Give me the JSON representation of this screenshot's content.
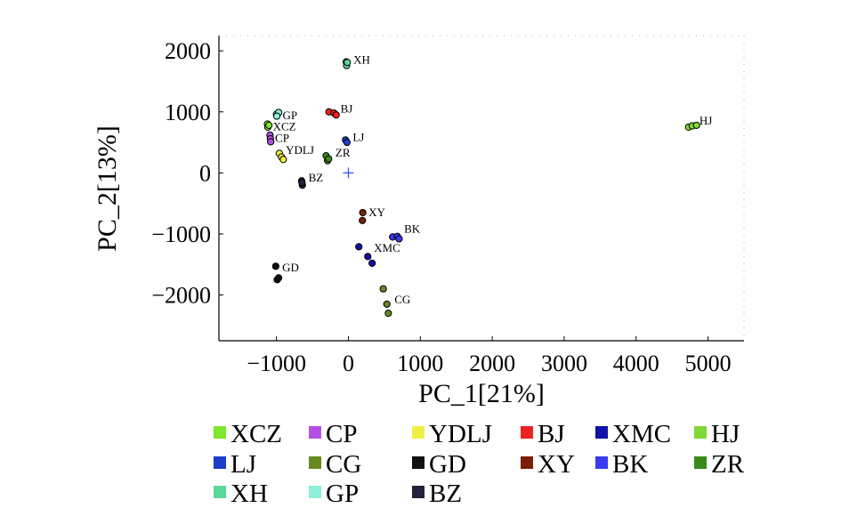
{
  "chart_data": {
    "type": "scatter",
    "xlabel": "PC_1[21%]",
    "ylabel": "PC_2[13%]",
    "xlim": [
      -1800,
      5500
    ],
    "ylim": [
      -2750,
      2250
    ],
    "xticks": [
      -1000,
      0,
      1000,
      2000,
      3000,
      4000,
      5000
    ],
    "yticks": [
      2000,
      1000,
      0,
      -1000,
      -2000
    ],
    "xtick_labels": [
      "−1000",
      "0",
      "1000",
      "2000",
      "3000",
      "4000",
      "5000"
    ],
    "ytick_labels": [
      "2000",
      "1000",
      "0",
      "−1000",
      "−2000"
    ],
    "grid": false,
    "legend_position": "bottom",
    "origin_marker": {
      "x": 0,
      "y": 0,
      "symbol": "+",
      "color": "#3355ff"
    },
    "series": [
      {
        "name": "XCZ",
        "color": "#7de82c",
        "points": [
          [
            -1125,
            800
          ],
          [
            -1120,
            750
          ],
          [
            -1105,
            780
          ]
        ],
        "label_at": [
          -1050,
          700
        ]
      },
      {
        "name": "CP",
        "color": "#b44fe8",
        "points": [
          [
            -1090,
            620
          ],
          [
            -1085,
            560
          ],
          [
            -1080,
            510
          ]
        ],
        "label_at": [
          -1020,
          510
        ]
      },
      {
        "name": "YDLJ",
        "color": "#eeee44",
        "points": [
          [
            -960,
            320
          ],
          [
            -930,
            260
          ],
          [
            -905,
            220
          ]
        ],
        "label_at": [
          -870,
          310
        ]
      },
      {
        "name": "BJ",
        "color": "#ee2222",
        "points": [
          [
            -270,
            1000
          ],
          [
            -200,
            980
          ],
          [
            -170,
            950
          ]
        ],
        "label_at": [
          -110,
          990
        ]
      },
      {
        "name": "XMC",
        "color": "#1010aa",
        "points": [
          [
            145,
            -1210
          ],
          [
            270,
            -1370
          ],
          [
            330,
            -1480
          ]
        ],
        "label_at": [
          355,
          -1290
        ]
      },
      {
        "name": "HJ",
        "color": "#80d834",
        "points": [
          [
            4730,
            750
          ],
          [
            4780,
            770
          ],
          [
            4840,
            780
          ]
        ],
        "label_at": [
          4880,
          790
        ]
      },
      {
        "name": "LJ",
        "color": "#1a3fcc",
        "points": [
          [
            -40,
            540
          ],
          [
            -20,
            500
          ]
        ],
        "label_at": [
          60,
          520
        ]
      },
      {
        "name": "CG",
        "color": "#66881e",
        "points": [
          [
            485,
            -1900
          ],
          [
            535,
            -2150
          ],
          [
            555,
            -2300
          ]
        ],
        "label_at": [
          640,
          -2140
        ]
      },
      {
        "name": "GD",
        "color": "#111111",
        "points": [
          [
            -1010,
            -1530
          ],
          [
            -990,
            -1750
          ],
          [
            -970,
            -1720
          ]
        ],
        "label_at": [
          -920,
          -1610
        ]
      },
      {
        "name": "XY",
        "color": "#7a1e08",
        "points": [
          [
            200,
            -650
          ],
          [
            195,
            -780
          ]
        ],
        "label_at": [
          280,
          -710
        ]
      },
      {
        "name": "BK",
        "color": "#3a3aee",
        "points": [
          [
            615,
            -1050
          ],
          [
            680,
            -1040
          ],
          [
            705,
            -1080
          ]
        ],
        "label_at": [
          775,
          -980
        ]
      },
      {
        "name": "ZR",
        "color": "#3a8a1a",
        "points": [
          [
            -310,
            280
          ],
          [
            -290,
            200
          ],
          [
            -275,
            230
          ]
        ],
        "label_at": [
          -180,
          270
        ]
      },
      {
        "name": "XH",
        "color": "#5ad89a",
        "points": [
          [
            -30,
            1820
          ],
          [
            -25,
            1760
          ],
          [
            -15,
            1810
          ]
        ],
        "label_at": [
          70,
          1790
        ]
      },
      {
        "name": "GP",
        "color": "#8cf0d8",
        "points": [
          [
            -1000,
            960
          ],
          [
            -970,
            990
          ],
          [
            -995,
            930
          ]
        ],
        "label_at": [
          -915,
          880
        ]
      },
      {
        "name": "BZ",
        "color": "#22223a",
        "points": [
          [
            -650,
            -130
          ],
          [
            -640,
            -200
          ],
          [
            -645,
            -160
          ]
        ],
        "label_at": [
          -555,
          -140
        ]
      }
    ]
  }
}
